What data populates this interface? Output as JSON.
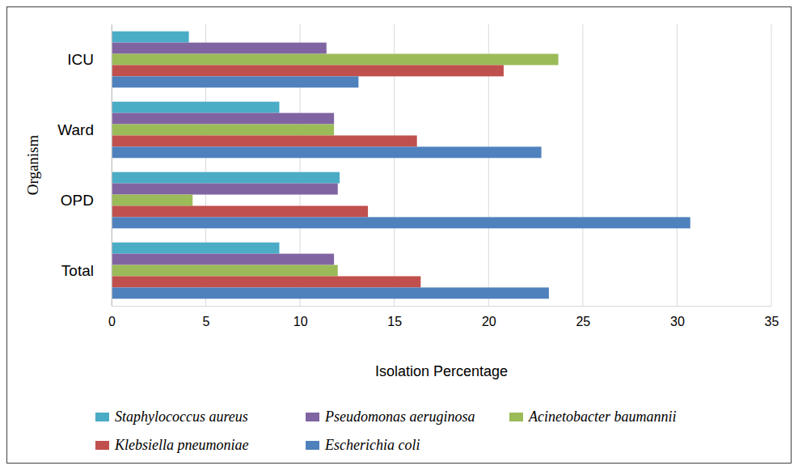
{
  "chart_data": {
    "type": "bar",
    "orientation": "horizontal",
    "x_label": "Isolation Percentage",
    "y_label": "Organism",
    "categories": [
      "ICU",
      "Ward",
      "OPD",
      "Total"
    ],
    "series": [
      {
        "name": "Staphylococcus aureus",
        "color": "#4bacc6",
        "values": [
          4.1,
          8.9,
          12.1,
          8.9
        ]
      },
      {
        "name": "Pseudomonas aeruginosa",
        "color": "#8064a2",
        "values": [
          11.4,
          11.8,
          12.0,
          11.8
        ]
      },
      {
        "name": "Acinetobacter baumannii",
        "color": "#9bbb59",
        "values": [
          23.7,
          11.8,
          4.3,
          12.0
        ]
      },
      {
        "name": "Klebsiella pneumoniae",
        "color": "#c0504d",
        "values": [
          20.8,
          16.2,
          13.6,
          16.4
        ]
      },
      {
        "name": "Escherichia coli",
        "color": "#4f81bd",
        "values": [
          13.1,
          22.8,
          30.7,
          23.2
        ]
      }
    ],
    "xlim": [
      0,
      35
    ],
    "xticks": [
      0,
      5,
      10,
      15,
      20,
      25,
      30,
      35
    ],
    "grid": true,
    "legend": "bottom"
  }
}
